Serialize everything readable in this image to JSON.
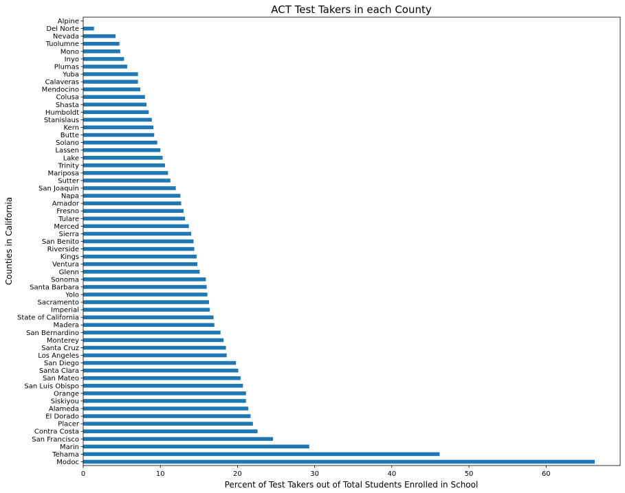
{
  "chart_data": {
    "type": "bar",
    "orientation": "horizontal",
    "title": "ACT Test Takers in each County",
    "xlabel": "Percent of Test Takers out of Total Students Enrolled in School",
    "ylabel": "Counties in California",
    "xlim": [
      0,
      69.6
    ],
    "xticks": [
      0,
      10,
      20,
      30,
      40,
      50,
      60
    ],
    "grid": false,
    "bar_color": "#1f77b4",
    "categories": [
      "Alpine",
      "Del Norte",
      "Nevada",
      "Tuolumne",
      "Mono",
      "Inyo",
      "Plumas",
      "Yuba",
      "Calaveras",
      "Mendocino",
      "Colusa",
      "Shasta",
      "Humboldt",
      "Stanislaus",
      "Kern",
      "Butte",
      "Solano",
      "Lassen",
      "Lake",
      "Trinity",
      "Mariposa",
      "Sutter",
      "San Joaquin",
      "Napa",
      "Amador",
      "Fresno",
      "Tulare",
      "Merced",
      "Sierra",
      "San Benito",
      "Riverside",
      "Kings",
      "Ventura",
      "Glenn",
      "Sonoma",
      "Santa Barbara",
      "Yolo",
      "Sacramento",
      "Imperial",
      "State of California",
      "Madera",
      "San Bernardino",
      "Monterey",
      "Santa Cruz",
      "Los Angeles",
      "San Diego",
      "Santa Clara",
      "San Mateo",
      "San Luis Obispo",
      "Orange",
      "Siskiyou",
      "Alameda",
      "El Dorado",
      "Placer",
      "Contra Costa",
      "San Francisco",
      "Marin",
      "Tehama",
      "Modoc"
    ],
    "values": [
      0.0,
      1.4,
      4.2,
      4.7,
      4.8,
      5.3,
      5.7,
      7.1,
      7.1,
      7.4,
      8.0,
      8.2,
      8.5,
      8.9,
      9.1,
      9.2,
      9.6,
      10.0,
      10.3,
      10.6,
      11.0,
      11.3,
      12.0,
      12.6,
      12.7,
      13.0,
      13.2,
      13.7,
      14.0,
      14.3,
      14.4,
      14.7,
      14.8,
      15.1,
      15.9,
      16.0,
      16.1,
      16.3,
      16.4,
      16.9,
      17.0,
      17.8,
      18.2,
      18.5,
      18.6,
      19.8,
      20.1,
      20.4,
      20.7,
      21.1,
      21.1,
      21.4,
      21.7,
      22.0,
      22.6,
      24.6,
      29.3,
      46.2,
      66.3
    ]
  }
}
